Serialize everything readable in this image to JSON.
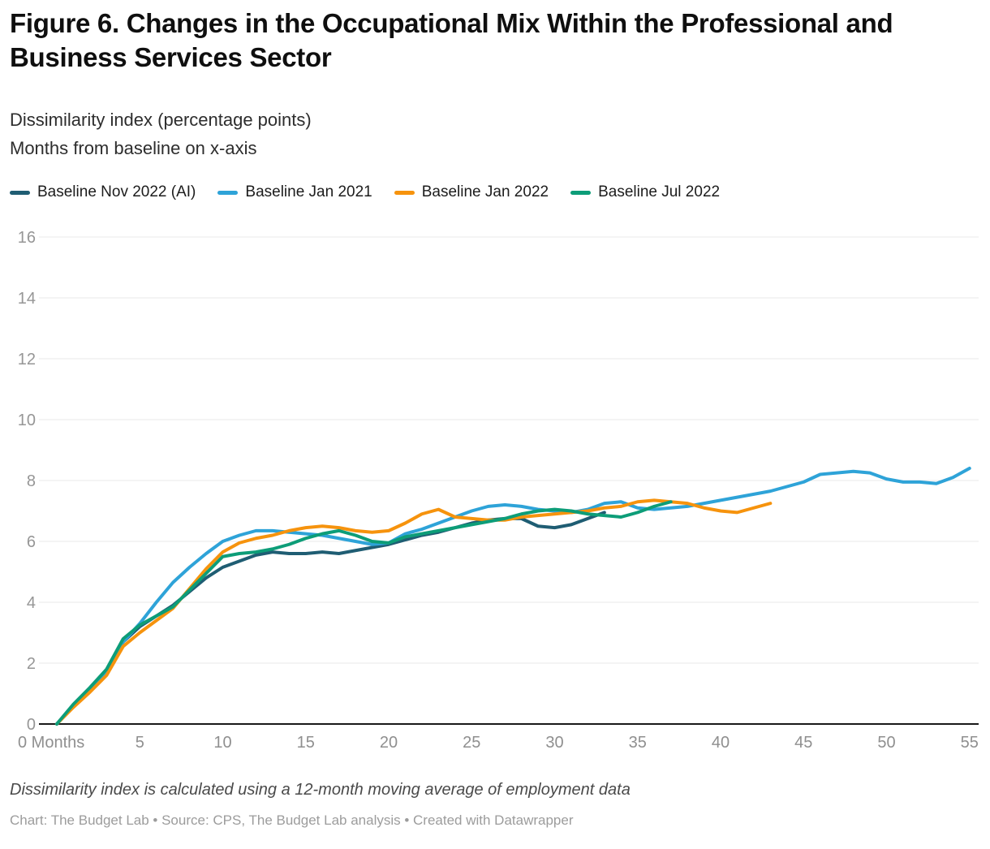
{
  "header": {
    "title": "Figure 6. Changes in the Occupational Mix Within the Professional and Business Services Sector",
    "subtitle_line1": "Dissimilarity index (percentage points)",
    "subtitle_line2": "Months from baseline on x-axis"
  },
  "footer": {
    "note": "Dissimilarity index is calculated using a 12-month moving average of employment data",
    "credit": "Chart: The Budget Lab • Source: CPS, The Budget Lab analysis • Created with Datawrapper"
  },
  "colors": {
    "baseline_nov_2022_ai": "#1f5d73",
    "baseline_jan_2021": "#2ea3d8",
    "baseline_jan_2022": "#f6930d",
    "baseline_jul_2022": "#0d9d78",
    "gridline": "#e8e8e8",
    "zero_axis": "#191919",
    "axis_text": "#969696"
  },
  "chart_data": {
    "type": "line",
    "title": "Figure 6. Changes in the Occupational Mix Within the Professional and Business Services Sector",
    "xlabel": "Months from baseline",
    "ylabel": "Dissimilarity index (percentage points)",
    "xlim": [
      0,
      56
    ],
    "ylim": [
      0,
      16.5
    ],
    "grid": "horizontal",
    "legend_position": "top",
    "x_ticks": [
      0,
      5,
      10,
      15,
      20,
      25,
      30,
      35,
      40,
      45,
      50,
      55
    ],
    "x_first_tick_label": "0 Months",
    "y_ticks": [
      0,
      2,
      4,
      6,
      8,
      10,
      12,
      14,
      16
    ],
    "series": [
      {
        "name": "Baseline Nov 2022 (AI)",
        "color": "#1f5d73",
        "x_start_month": 0,
        "values": [
          0,
          0.6,
          1.1,
          1.7,
          2.7,
          3.2,
          3.55,
          3.9,
          4.35,
          4.8,
          5.15,
          5.35,
          5.55,
          5.65,
          5.6,
          5.6,
          5.65,
          5.6,
          5.7,
          5.8,
          5.9,
          6.05,
          6.2,
          6.3,
          6.45,
          6.6,
          6.7,
          6.75,
          6.75,
          6.5,
          6.45,
          6.55,
          6.75,
          6.95
        ]
      },
      {
        "name": "Baseline Jan 2021",
        "color": "#2ea3d8",
        "x_start_month": 0,
        "values": [
          0,
          0.6,
          1.1,
          1.75,
          2.7,
          3.3,
          4.0,
          4.65,
          5.15,
          5.6,
          6.0,
          6.2,
          6.35,
          6.35,
          6.3,
          6.25,
          6.2,
          6.1,
          6.0,
          5.9,
          5.95,
          6.25,
          6.4,
          6.6,
          6.8,
          7.0,
          7.15,
          7.2,
          7.15,
          7.05,
          7.0,
          6.95,
          7.05,
          7.25,
          7.3,
          7.1,
          7.05,
          7.1,
          7.15,
          7.25,
          7.35,
          7.45,
          7.55,
          7.65,
          7.8,
          7.95,
          8.2,
          8.25,
          8.3,
          8.25,
          8.05,
          7.95,
          7.95,
          7.9,
          8.1,
          8.4
        ]
      },
      {
        "name": "Baseline Jan 2022",
        "color": "#f6930d",
        "x_start_month": 0,
        "values": [
          0,
          0.55,
          1.05,
          1.6,
          2.55,
          3.0,
          3.4,
          3.8,
          4.45,
          5.1,
          5.65,
          5.95,
          6.1,
          6.2,
          6.35,
          6.45,
          6.5,
          6.45,
          6.35,
          6.3,
          6.35,
          6.6,
          6.9,
          7.05,
          6.8,
          6.75,
          6.7,
          6.7,
          6.8,
          6.85,
          6.9,
          6.95,
          7.0,
          7.1,
          7.15,
          7.3,
          7.35,
          7.3,
          7.25,
          7.1,
          7.0,
          6.95,
          7.1,
          7.25
        ]
      },
      {
        "name": "Baseline Jul 2022",
        "color": "#0d9d78",
        "x_start_month": 0,
        "values": [
          0,
          0.65,
          1.2,
          1.8,
          2.8,
          3.25,
          3.55,
          3.85,
          4.4,
          4.95,
          5.5,
          5.6,
          5.65,
          5.75,
          5.9,
          6.1,
          6.25,
          6.35,
          6.2,
          6.0,
          5.95,
          6.15,
          6.25,
          6.35,
          6.45,
          6.55,
          6.65,
          6.75,
          6.9,
          7.0,
          7.05,
          7.0,
          6.9,
          6.85,
          6.8,
          6.95,
          7.15,
          7.3
        ]
      }
    ]
  }
}
